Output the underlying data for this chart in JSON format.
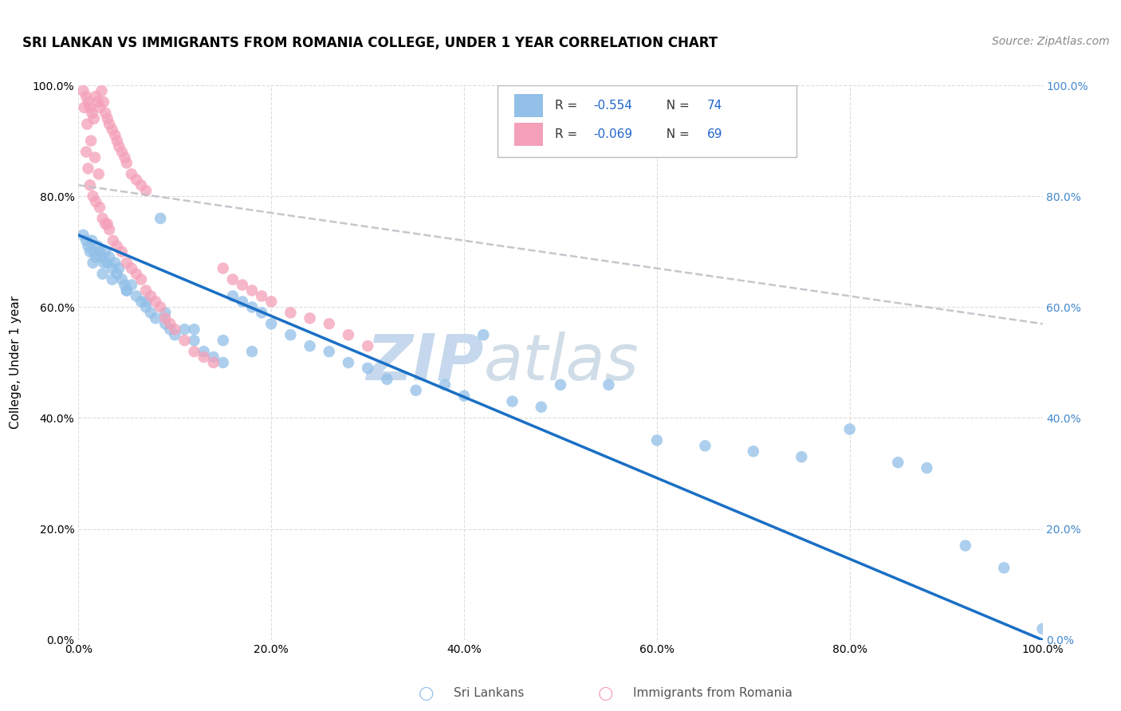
{
  "title": "SRI LANKAN VS IMMIGRANTS FROM ROMANIA COLLEGE, UNDER 1 YEAR CORRELATION CHART",
  "source": "Source: ZipAtlas.com",
  "ylabel": "College, Under 1 year",
  "xmin": 0.0,
  "xmax": 1.0,
  "ymin": 0.0,
  "ymax": 1.0,
  "legend1_r": "R = -0.554",
  "legend1_n": "N = 74",
  "legend2_r": "R = -0.069",
  "legend2_n": "N = 69",
  "sri_lankan_color": "#92c0e8",
  "romania_color": "#f4a0b8",
  "sri_lankan_line_color": "#1a6fc4",
  "romania_line_color": "#c0c0c8",
  "background_color": "#ffffff",
  "grid_color": "#dddddd",
  "watermark_zip": "ZIP",
  "watermark_atlas": "atlas",
  "watermark_color": "#c5d8ed",
  "sl_line_x0": 0.0,
  "sl_line_x1": 1.0,
  "sl_line_y0": 0.73,
  "sl_line_y1": 0.0,
  "ro_line_x0": 0.0,
  "ro_line_x1": 1.0,
  "ro_line_y0": 0.82,
  "ro_line_y1": 0.57,
  "sri_lankans_x": [
    0.005,
    0.008,
    0.01,
    0.012,
    0.014,
    0.016,
    0.018,
    0.02,
    0.022,
    0.024,
    0.026,
    0.028,
    0.03,
    0.032,
    0.035,
    0.038,
    0.04,
    0.042,
    0.045,
    0.048,
    0.05,
    0.055,
    0.06,
    0.065,
    0.07,
    0.075,
    0.08,
    0.085,
    0.09,
    0.095,
    0.1,
    0.11,
    0.12,
    0.13,
    0.14,
    0.15,
    0.16,
    0.17,
    0.18,
    0.19,
    0.2,
    0.22,
    0.24,
    0.26,
    0.28,
    0.3,
    0.32,
    0.35,
    0.38,
    0.4,
    0.42,
    0.45,
    0.48,
    0.5,
    0.55,
    0.6,
    0.65,
    0.7,
    0.75,
    0.8,
    0.85,
    0.88,
    0.92,
    0.96,
    1.0,
    0.015,
    0.025,
    0.035,
    0.05,
    0.07,
    0.09,
    0.12,
    0.15,
    0.18
  ],
  "sri_lankans_y": [
    0.73,
    0.72,
    0.71,
    0.7,
    0.72,
    0.7,
    0.69,
    0.71,
    0.7,
    0.69,
    0.68,
    0.7,
    0.68,
    0.69,
    0.67,
    0.68,
    0.66,
    0.67,
    0.65,
    0.64,
    0.63,
    0.64,
    0.62,
    0.61,
    0.6,
    0.59,
    0.58,
    0.76,
    0.57,
    0.56,
    0.55,
    0.56,
    0.54,
    0.52,
    0.51,
    0.5,
    0.62,
    0.61,
    0.6,
    0.59,
    0.57,
    0.55,
    0.53,
    0.52,
    0.5,
    0.49,
    0.47,
    0.45,
    0.46,
    0.44,
    0.55,
    0.43,
    0.42,
    0.46,
    0.46,
    0.36,
    0.35,
    0.34,
    0.33,
    0.38,
    0.32,
    0.31,
    0.17,
    0.13,
    0.02,
    0.68,
    0.66,
    0.65,
    0.63,
    0.61,
    0.59,
    0.56,
    0.54,
    0.52
  ],
  "romania_x": [
    0.005,
    0.008,
    0.01,
    0.012,
    0.014,
    0.016,
    0.018,
    0.02,
    0.022,
    0.024,
    0.026,
    0.028,
    0.03,
    0.032,
    0.035,
    0.038,
    0.04,
    0.042,
    0.045,
    0.048,
    0.05,
    0.055,
    0.06,
    0.065,
    0.07,
    0.008,
    0.01,
    0.012,
    0.015,
    0.018,
    0.022,
    0.025,
    0.028,
    0.032,
    0.036,
    0.04,
    0.045,
    0.05,
    0.055,
    0.06,
    0.065,
    0.07,
    0.075,
    0.08,
    0.085,
    0.09,
    0.095,
    0.1,
    0.11,
    0.12,
    0.13,
    0.14,
    0.15,
    0.16,
    0.17,
    0.18,
    0.19,
    0.2,
    0.22,
    0.24,
    0.26,
    0.28,
    0.3,
    0.006,
    0.009,
    0.013,
    0.017,
    0.021,
    0.03
  ],
  "romania_y": [
    0.99,
    0.98,
    0.97,
    0.96,
    0.95,
    0.94,
    0.98,
    0.97,
    0.96,
    0.99,
    0.97,
    0.95,
    0.94,
    0.93,
    0.92,
    0.91,
    0.9,
    0.89,
    0.88,
    0.87,
    0.86,
    0.84,
    0.83,
    0.82,
    0.81,
    0.88,
    0.85,
    0.82,
    0.8,
    0.79,
    0.78,
    0.76,
    0.75,
    0.74,
    0.72,
    0.71,
    0.7,
    0.68,
    0.67,
    0.66,
    0.65,
    0.63,
    0.62,
    0.61,
    0.6,
    0.58,
    0.57,
    0.56,
    0.54,
    0.52,
    0.51,
    0.5,
    0.67,
    0.65,
    0.64,
    0.63,
    0.62,
    0.61,
    0.59,
    0.58,
    0.57,
    0.55,
    0.53,
    0.96,
    0.93,
    0.9,
    0.87,
    0.84,
    0.75
  ]
}
